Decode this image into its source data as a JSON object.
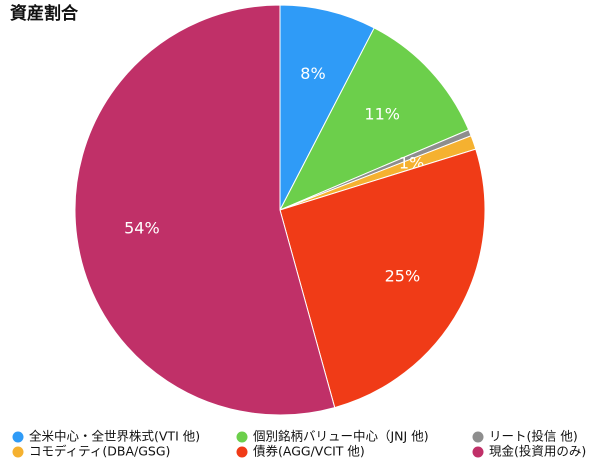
{
  "chart_data": {
    "type": "pie",
    "title": "資産割合",
    "categories": [
      "全米中心・全世界株式(VTI 他)",
      "個別銘柄バリュー中心（JNJ 他)",
      "リート(投信 他)",
      "コモディティ(DBA/GSG)",
      "債券(AGG/VCIT 他)",
      "現金(投資用のみ)"
    ],
    "values": [
      7.6,
      11.0,
      0.5,
      1.1,
      25.5,
      54.3
    ],
    "value_labels": [
      "8%",
      "11%",
      null,
      "1%",
      "25%",
      "54%"
    ],
    "colors": [
      "#2f9bf7",
      "#6ccf4b",
      "#8e8e8e",
      "#f5b130",
      "#f03b17",
      "#c03068"
    ],
    "legend": "bottom"
  }
}
